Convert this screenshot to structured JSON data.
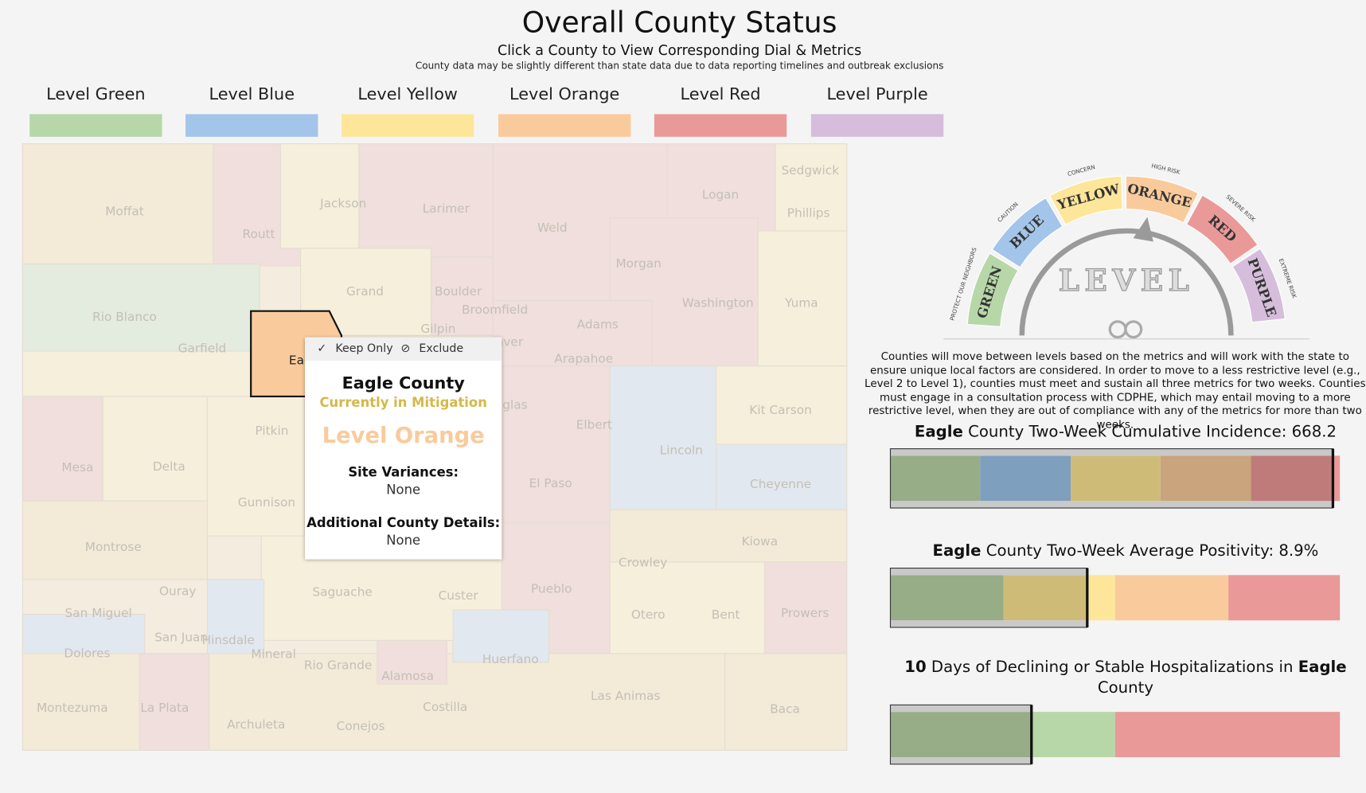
{
  "header": {
    "title": "Overall County Status",
    "subtitle": "Click a County to View Corresponding Dial & Metrics",
    "note": "County data may be slightly different than state data due to data reporting timelines and outbreak exclusions"
  },
  "legend": [
    {
      "label": "Level Green",
      "color": "#b7d7a8"
    },
    {
      "label": "Level Blue",
      "color": "#a4c5ea"
    },
    {
      "label": "Level Yellow",
      "color": "#fde69a"
    },
    {
      "label": "Level Orange",
      "color": "#f9cb9c"
    },
    {
      "label": "Level Red",
      "color": "#ea9999"
    },
    {
      "label": "Level Purple",
      "color": "#d5bddb"
    }
  ],
  "map": {
    "counties": [
      "Moffat",
      "Routt",
      "Jackson",
      "Larimer",
      "Weld",
      "Logan",
      "Sedgwick",
      "Phillips",
      "Rio Blanco",
      "Grand",
      "Boulder",
      "Broomfield",
      "Morgan",
      "Washington",
      "Yuma",
      "Garfield",
      "Gilpin",
      "Adams",
      "Denver",
      "Arapahoe",
      "Eagle",
      "Douglas",
      "Elbert",
      "Kit Carson",
      "Pitkin",
      "Lincoln",
      "Mesa",
      "Delta",
      "El Paso",
      "Cheyenne",
      "Gunnison",
      "Montrose",
      "Kiowa",
      "Crowley",
      "Ouray",
      "Saguache",
      "Custer",
      "Pueblo",
      "San Miguel",
      "Otero",
      "Bent",
      "Prowers",
      "San Juan",
      "Hinsdale",
      "Dolores",
      "Mineral",
      "Rio Grande",
      "Alamosa",
      "Huerfano",
      "Las Animas",
      "Montezuma",
      "La Plata",
      "Archuleta",
      "Conejos",
      "Costilla",
      "Baca"
    ]
  },
  "tooltip": {
    "actions": [
      "Keep Only",
      "Exclude"
    ],
    "county": "Eagle County",
    "status": "Currently in Mitigation",
    "level": "Level Orange",
    "fields": [
      {
        "label": "Site Variances:",
        "value": "None"
      },
      {
        "label": "Additional County Details:",
        "value": "None"
      }
    ]
  },
  "dial": {
    "center": "LEVEL",
    "levels": [
      {
        "name": "GREEN",
        "risk": "PROTECT OUR NEIGHBORS",
        "color": "#b7d7a8"
      },
      {
        "name": "BLUE",
        "risk": "CAUTION",
        "color": "#a4c5ea"
      },
      {
        "name": "YELLOW",
        "risk": "CONCERN",
        "color": "#fde69a"
      },
      {
        "name": "ORANGE",
        "risk": "HIGH RISK",
        "color": "#f9cb9c"
      },
      {
        "name": "RED",
        "risk": "SEVERE RISK",
        "color": "#ea9999"
      },
      {
        "name": "PURPLE",
        "risk": "EXTREME RISK",
        "color": "#d5bddb"
      }
    ]
  },
  "description": "Counties will move between levels based on the metrics and will work with the state to ensure unique local factors are considered. In order to move to a less restrictive level (e.g., Level 2 to Level 1), counties must meet and sustain all three metrics for two weeks. Counties must engage in a consultation process with CDPHE, which may entail moving to a more restrictive level, when they are out of compliance with any of the metrics for more than two weeks.",
  "metrics": [
    {
      "parts": [
        {
          "text": "Eagle",
          "bold": true
        },
        {
          "text": " County Two-Week Cumulative Incidence: "
        },
        {
          "text": "668.2"
        }
      ]
    },
    {
      "parts": [
        {
          "text": "Eagle",
          "bold": true
        },
        {
          "text": " County Two-Week Average Positivity: "
        },
        {
          "text": "8.9%"
        }
      ]
    },
    {
      "parts": [
        {
          "text": "10",
          "bold": true
        },
        {
          "text": " Days of Declining or Stable Hospitalizations in "
        },
        {
          "text": "Eagle",
          "bold": true
        },
        {
          "text": " County"
        }
      ]
    }
  ]
}
